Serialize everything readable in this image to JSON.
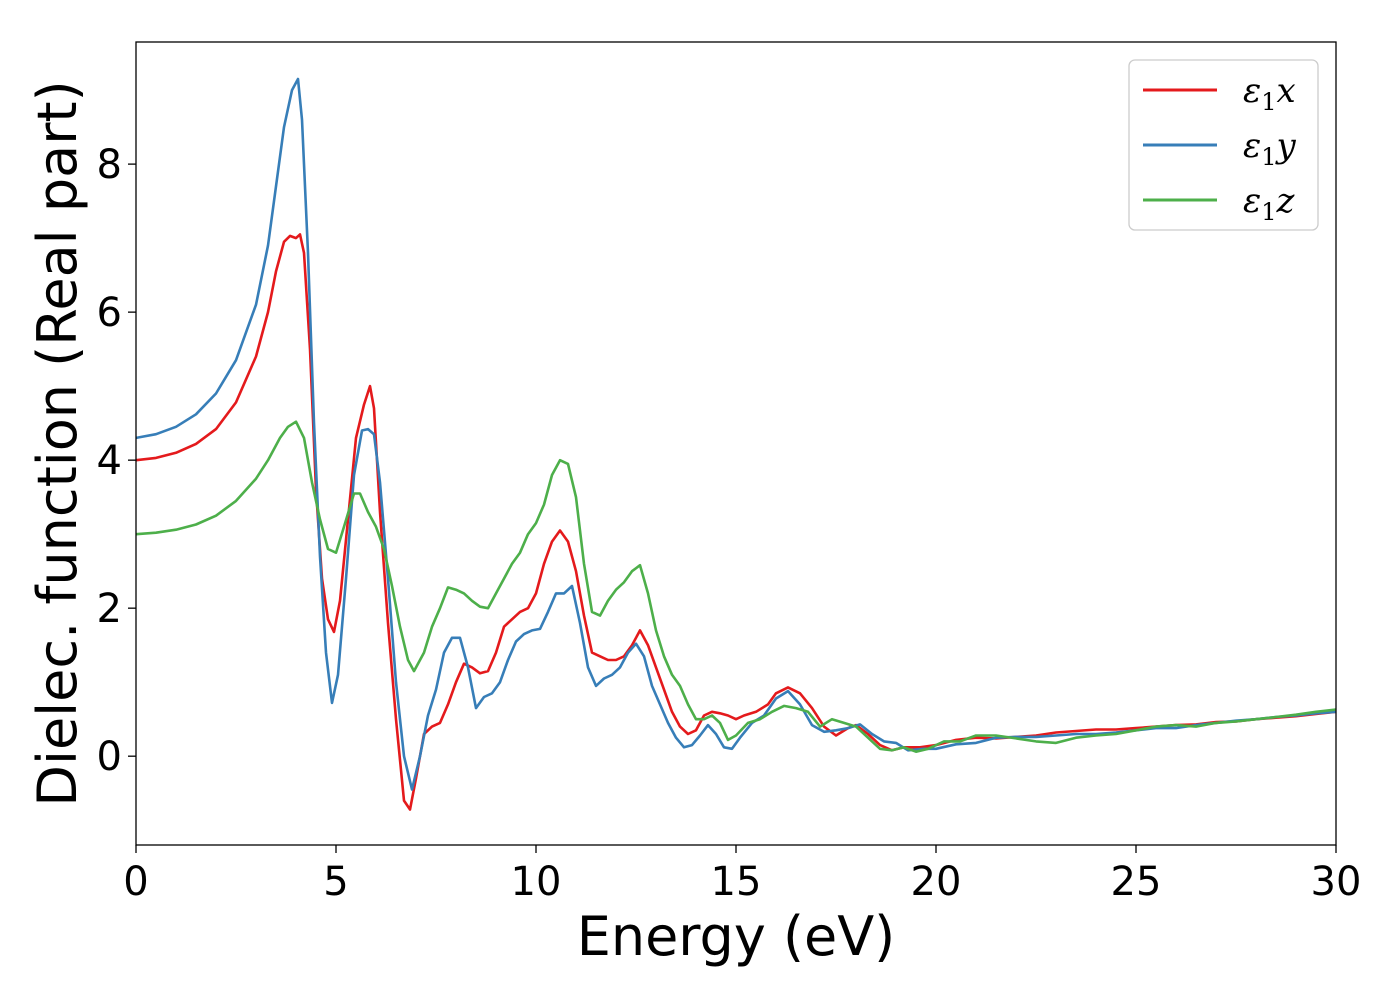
{
  "chart_data": {
    "type": "line",
    "title": "",
    "xlabel": "Energy (eV)",
    "ylabel": "Dielec. function (Real part)",
    "xlim": [
      0,
      30
    ],
    "ylim": [
      -1.2,
      9.65
    ],
    "xticks": [
      0,
      5,
      10,
      15,
      20,
      25,
      30
    ],
    "yticks": [
      0,
      2,
      4,
      6,
      8
    ],
    "grid": false,
    "legend_position": "top-right",
    "series": [
      {
        "name": "ε₁x",
        "legend_symbol": "ε",
        "legend_sub": "1",
        "legend_suffix": "x",
        "color": "#e41a1c",
        "points": [
          [
            0,
            4.0
          ],
          [
            0.5,
            4.03
          ],
          [
            1.0,
            4.1
          ],
          [
            1.5,
            4.22
          ],
          [
            2.0,
            4.42
          ],
          [
            2.5,
            4.78
          ],
          [
            3.0,
            5.4
          ],
          [
            3.3,
            6.0
          ],
          [
            3.5,
            6.55
          ],
          [
            3.7,
            6.95
          ],
          [
            3.85,
            7.03
          ],
          [
            4.0,
            7.0
          ],
          [
            4.1,
            7.05
          ],
          [
            4.2,
            6.8
          ],
          [
            4.35,
            5.5
          ],
          [
            4.5,
            3.6
          ],
          [
            4.65,
            2.4
          ],
          [
            4.8,
            1.85
          ],
          [
            4.95,
            1.68
          ],
          [
            5.1,
            2.1
          ],
          [
            5.3,
            3.2
          ],
          [
            5.5,
            4.3
          ],
          [
            5.7,
            4.75
          ],
          [
            5.85,
            5.0
          ],
          [
            5.95,
            4.7
          ],
          [
            6.1,
            3.3
          ],
          [
            6.3,
            1.8
          ],
          [
            6.5,
            0.5
          ],
          [
            6.7,
            -0.6
          ],
          [
            6.85,
            -0.72
          ],
          [
            7.0,
            -0.3
          ],
          [
            7.2,
            0.3
          ],
          [
            7.4,
            0.4
          ],
          [
            7.6,
            0.45
          ],
          [
            7.8,
            0.7
          ],
          [
            8.0,
            1.0
          ],
          [
            8.2,
            1.25
          ],
          [
            8.4,
            1.2
          ],
          [
            8.6,
            1.12
          ],
          [
            8.8,
            1.15
          ],
          [
            9.0,
            1.4
          ],
          [
            9.2,
            1.75
          ],
          [
            9.4,
            1.85
          ],
          [
            9.6,
            1.95
          ],
          [
            9.8,
            2.0
          ],
          [
            10.0,
            2.2
          ],
          [
            10.2,
            2.6
          ],
          [
            10.4,
            2.9
          ],
          [
            10.6,
            3.05
          ],
          [
            10.8,
            2.9
          ],
          [
            11.0,
            2.5
          ],
          [
            11.2,
            1.9
          ],
          [
            11.4,
            1.4
          ],
          [
            11.6,
            1.35
          ],
          [
            11.8,
            1.3
          ],
          [
            12.0,
            1.3
          ],
          [
            12.2,
            1.35
          ],
          [
            12.4,
            1.5
          ],
          [
            12.6,
            1.7
          ],
          [
            12.8,
            1.5
          ],
          [
            13.0,
            1.2
          ],
          [
            13.2,
            0.9
          ],
          [
            13.4,
            0.6
          ],
          [
            13.6,
            0.4
          ],
          [
            13.8,
            0.3
          ],
          [
            14.0,
            0.35
          ],
          [
            14.2,
            0.55
          ],
          [
            14.4,
            0.6
          ],
          [
            14.6,
            0.58
          ],
          [
            14.8,
            0.55
          ],
          [
            15.0,
            0.5
          ],
          [
            15.2,
            0.55
          ],
          [
            15.5,
            0.6
          ],
          [
            15.8,
            0.7
          ],
          [
            16.0,
            0.85
          ],
          [
            16.3,
            0.93
          ],
          [
            16.6,
            0.85
          ],
          [
            16.9,
            0.65
          ],
          [
            17.2,
            0.4
          ],
          [
            17.5,
            0.28
          ],
          [
            17.8,
            0.38
          ],
          [
            18.0,
            0.42
          ],
          [
            18.3,
            0.3
          ],
          [
            18.6,
            0.15
          ],
          [
            18.9,
            0.08
          ],
          [
            19.2,
            0.12
          ],
          [
            19.6,
            0.12
          ],
          [
            20.0,
            0.15
          ],
          [
            20.5,
            0.22
          ],
          [
            21.0,
            0.25
          ],
          [
            21.5,
            0.24
          ],
          [
            22.0,
            0.26
          ],
          [
            22.5,
            0.28
          ],
          [
            23.0,
            0.32
          ],
          [
            23.5,
            0.34
          ],
          [
            24.0,
            0.36
          ],
          [
            24.5,
            0.36
          ],
          [
            25.0,
            0.38
          ],
          [
            25.5,
            0.4
          ],
          [
            26.0,
            0.42
          ],
          [
            26.5,
            0.43
          ],
          [
            27.0,
            0.46
          ],
          [
            27.5,
            0.47
          ],
          [
            28.0,
            0.5
          ],
          [
            28.5,
            0.52
          ],
          [
            29.0,
            0.54
          ],
          [
            29.5,
            0.57
          ],
          [
            30.0,
            0.6
          ]
        ]
      },
      {
        "name": "ε₁y",
        "legend_symbol": "ε",
        "legend_sub": "1",
        "legend_suffix": "y",
        "color": "#377eb8",
        "points": [
          [
            0,
            4.3
          ],
          [
            0.5,
            4.35
          ],
          [
            1.0,
            4.45
          ],
          [
            1.5,
            4.62
          ],
          [
            2.0,
            4.9
          ],
          [
            2.5,
            5.35
          ],
          [
            3.0,
            6.1
          ],
          [
            3.3,
            6.9
          ],
          [
            3.5,
            7.7
          ],
          [
            3.7,
            8.5
          ],
          [
            3.9,
            9.0
          ],
          [
            4.05,
            9.15
          ],
          [
            4.15,
            8.6
          ],
          [
            4.3,
            6.8
          ],
          [
            4.45,
            4.5
          ],
          [
            4.6,
            2.7
          ],
          [
            4.75,
            1.4
          ],
          [
            4.9,
            0.72
          ],
          [
            5.05,
            1.1
          ],
          [
            5.25,
            2.4
          ],
          [
            5.45,
            3.8
          ],
          [
            5.65,
            4.4
          ],
          [
            5.8,
            4.42
          ],
          [
            5.95,
            4.35
          ],
          [
            6.1,
            3.7
          ],
          [
            6.3,
            2.4
          ],
          [
            6.5,
            1.0
          ],
          [
            6.7,
            0.0
          ],
          [
            6.9,
            -0.45
          ],
          [
            7.1,
            0.0
          ],
          [
            7.3,
            0.55
          ],
          [
            7.5,
            0.9
          ],
          [
            7.7,
            1.4
          ],
          [
            7.9,
            1.6
          ],
          [
            8.1,
            1.6
          ],
          [
            8.3,
            1.2
          ],
          [
            8.5,
            0.65
          ],
          [
            8.7,
            0.8
          ],
          [
            8.9,
            0.85
          ],
          [
            9.1,
            1.0
          ],
          [
            9.3,
            1.3
          ],
          [
            9.5,
            1.55
          ],
          [
            9.7,
            1.65
          ],
          [
            9.9,
            1.7
          ],
          [
            10.1,
            1.72
          ],
          [
            10.3,
            1.95
          ],
          [
            10.5,
            2.2
          ],
          [
            10.7,
            2.2
          ],
          [
            10.9,
            2.3
          ],
          [
            11.1,
            1.8
          ],
          [
            11.3,
            1.2
          ],
          [
            11.5,
            0.95
          ],
          [
            11.7,
            1.05
          ],
          [
            11.9,
            1.1
          ],
          [
            12.1,
            1.2
          ],
          [
            12.3,
            1.4
          ],
          [
            12.5,
            1.52
          ],
          [
            12.7,
            1.35
          ],
          [
            12.9,
            0.95
          ],
          [
            13.1,
            0.7
          ],
          [
            13.3,
            0.45
          ],
          [
            13.5,
            0.25
          ],
          [
            13.7,
            0.12
          ],
          [
            13.9,
            0.15
          ],
          [
            14.1,
            0.28
          ],
          [
            14.3,
            0.42
          ],
          [
            14.5,
            0.3
          ],
          [
            14.7,
            0.12
          ],
          [
            14.9,
            0.1
          ],
          [
            15.1,
            0.25
          ],
          [
            15.4,
            0.45
          ],
          [
            15.7,
            0.55
          ],
          [
            16.0,
            0.78
          ],
          [
            16.3,
            0.88
          ],
          [
            16.6,
            0.7
          ],
          [
            16.9,
            0.42
          ],
          [
            17.2,
            0.33
          ],
          [
            17.5,
            0.35
          ],
          [
            17.8,
            0.38
          ],
          [
            18.1,
            0.43
          ],
          [
            18.4,
            0.3
          ],
          [
            18.7,
            0.2
          ],
          [
            19.0,
            0.18
          ],
          [
            19.3,
            0.08
          ],
          [
            19.7,
            0.1
          ],
          [
            20.0,
            0.1
          ],
          [
            20.5,
            0.16
          ],
          [
            21.0,
            0.18
          ],
          [
            21.5,
            0.25
          ],
          [
            22.0,
            0.26
          ],
          [
            22.5,
            0.26
          ],
          [
            23.0,
            0.28
          ],
          [
            23.5,
            0.3
          ],
          [
            24.0,
            0.3
          ],
          [
            24.5,
            0.32
          ],
          [
            25.0,
            0.35
          ],
          [
            25.5,
            0.38
          ],
          [
            26.0,
            0.38
          ],
          [
            26.5,
            0.42
          ],
          [
            27.0,
            0.45
          ],
          [
            27.5,
            0.48
          ],
          [
            28.0,
            0.5
          ],
          [
            28.5,
            0.53
          ],
          [
            29.0,
            0.55
          ],
          [
            29.5,
            0.58
          ],
          [
            30.0,
            0.6
          ]
        ]
      },
      {
        "name": "ε₁z",
        "legend_symbol": "ε",
        "legend_sub": "1",
        "legend_suffix": "z",
        "color": "#4daf4a",
        "points": [
          [
            0,
            3.0
          ],
          [
            0.5,
            3.02
          ],
          [
            1.0,
            3.06
          ],
          [
            1.5,
            3.13
          ],
          [
            2.0,
            3.25
          ],
          [
            2.5,
            3.45
          ],
          [
            3.0,
            3.75
          ],
          [
            3.3,
            4.0
          ],
          [
            3.6,
            4.3
          ],
          [
            3.8,
            4.45
          ],
          [
            4.0,
            4.52
          ],
          [
            4.2,
            4.3
          ],
          [
            4.4,
            3.7
          ],
          [
            4.6,
            3.2
          ],
          [
            4.8,
            2.8
          ],
          [
            5.0,
            2.75
          ],
          [
            5.2,
            3.1
          ],
          [
            5.45,
            3.55
          ],
          [
            5.6,
            3.55
          ],
          [
            5.8,
            3.3
          ],
          [
            6.0,
            3.1
          ],
          [
            6.2,
            2.8
          ],
          [
            6.4,
            2.3
          ],
          [
            6.6,
            1.75
          ],
          [
            6.8,
            1.3
          ],
          [
            6.95,
            1.15
          ],
          [
            7.2,
            1.4
          ],
          [
            7.4,
            1.75
          ],
          [
            7.6,
            2.0
          ],
          [
            7.8,
            2.28
          ],
          [
            8.0,
            2.25
          ],
          [
            8.2,
            2.2
          ],
          [
            8.4,
            2.1
          ],
          [
            8.6,
            2.02
          ],
          [
            8.8,
            2.0
          ],
          [
            9.0,
            2.2
          ],
          [
            9.2,
            2.4
          ],
          [
            9.4,
            2.6
          ],
          [
            9.6,
            2.75
          ],
          [
            9.8,
            3.0
          ],
          [
            10.0,
            3.15
          ],
          [
            10.2,
            3.4
          ],
          [
            10.4,
            3.8
          ],
          [
            10.6,
            4.0
          ],
          [
            10.8,
            3.95
          ],
          [
            11.0,
            3.5
          ],
          [
            11.2,
            2.6
          ],
          [
            11.4,
            1.95
          ],
          [
            11.6,
            1.9
          ],
          [
            11.8,
            2.1
          ],
          [
            12.0,
            2.25
          ],
          [
            12.2,
            2.35
          ],
          [
            12.4,
            2.5
          ],
          [
            12.6,
            2.58
          ],
          [
            12.8,
            2.2
          ],
          [
            13.0,
            1.7
          ],
          [
            13.2,
            1.35
          ],
          [
            13.4,
            1.1
          ],
          [
            13.6,
            0.95
          ],
          [
            13.8,
            0.7
          ],
          [
            14.0,
            0.5
          ],
          [
            14.2,
            0.5
          ],
          [
            14.4,
            0.55
          ],
          [
            14.6,
            0.45
          ],
          [
            14.8,
            0.22
          ],
          [
            15.0,
            0.28
          ],
          [
            15.3,
            0.45
          ],
          [
            15.6,
            0.5
          ],
          [
            15.9,
            0.6
          ],
          [
            16.2,
            0.68
          ],
          [
            16.5,
            0.65
          ],
          [
            16.8,
            0.6
          ],
          [
            17.1,
            0.4
          ],
          [
            17.4,
            0.5
          ],
          [
            17.7,
            0.45
          ],
          [
            18.0,
            0.4
          ],
          [
            18.3,
            0.25
          ],
          [
            18.6,
            0.1
          ],
          [
            18.9,
            0.08
          ],
          [
            19.2,
            0.12
          ],
          [
            19.5,
            0.06
          ],
          [
            19.8,
            0.1
          ],
          [
            20.2,
            0.2
          ],
          [
            20.6,
            0.2
          ],
          [
            21.0,
            0.28
          ],
          [
            21.5,
            0.28
          ],
          [
            22.0,
            0.24
          ],
          [
            22.5,
            0.2
          ],
          [
            23.0,
            0.18
          ],
          [
            23.5,
            0.25
          ],
          [
            24.0,
            0.28
          ],
          [
            24.5,
            0.3
          ],
          [
            25.0,
            0.35
          ],
          [
            25.5,
            0.4
          ],
          [
            26.0,
            0.42
          ],
          [
            26.5,
            0.4
          ],
          [
            27.0,
            0.45
          ],
          [
            27.5,
            0.47
          ],
          [
            28.0,
            0.5
          ],
          [
            28.5,
            0.53
          ],
          [
            29.0,
            0.56
          ],
          [
            29.5,
            0.6
          ],
          [
            30.0,
            0.63
          ]
        ]
      }
    ]
  }
}
